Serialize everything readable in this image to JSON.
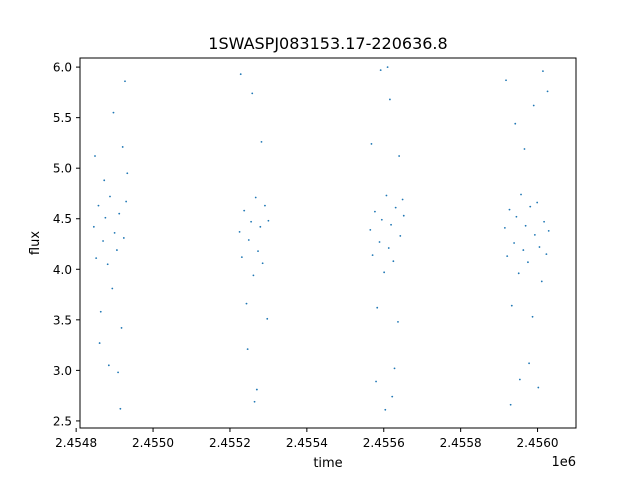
{
  "chart_data": {
    "type": "scatter",
    "title": "1SWASPJ083153.17-220636.8",
    "xlabel": "time",
    "ylabel": "flux",
    "x_offset_label": "1e6",
    "xlim": [
      2454810,
      2456100
    ],
    "ylim": [
      2.43,
      6.09
    ],
    "x_ticks": [
      2454800,
      2455000,
      2455200,
      2455400,
      2455600,
      2455800,
      2456000
    ],
    "x_tick_labels": [
      "2.4548",
      "2.4550",
      "2.4552",
      "2.4554",
      "2.4556",
      "2.4558",
      "2.4560"
    ],
    "y_ticks": [
      2.5,
      3.0,
      3.5,
      4.0,
      4.5,
      5.0,
      5.5,
      6.0
    ],
    "y_tick_labels": [
      "2.5",
      "3.0",
      "3.5",
      "4.0",
      "4.5",
      "5.0",
      "5.5",
      "6.0"
    ],
    "grid": false,
    "marker_color": "#1f77b4",
    "series": [
      {
        "name": "",
        "points": [
          [
            2454846,
            4.42
          ],
          [
            2454852,
            4.11
          ],
          [
            2454858,
            4.63
          ],
          [
            2454864,
            3.58
          ],
          [
            2454870,
            4.28
          ],
          [
            2454876,
            4.51
          ],
          [
            2454882,
            4.05
          ],
          [
            2454888,
            4.72
          ],
          [
            2454894,
            3.81
          ],
          [
            2454900,
            4.36
          ],
          [
            2454906,
            4.19
          ],
          [
            2454912,
            4.55
          ],
          [
            2454918,
            3.42
          ],
          [
            2454924,
            4.31
          ],
          [
            2454930,
            4.67
          ],
          [
            2454849,
            5.12
          ],
          [
            2454861,
            3.27
          ],
          [
            2454873,
            4.88
          ],
          [
            2454885,
            3.05
          ],
          [
            2454897,
            5.55
          ],
          [
            2454909,
            2.98
          ],
          [
            2454921,
            5.21
          ],
          [
            2454927,
            5.86
          ],
          [
            2454915,
            2.62
          ],
          [
            2454933,
            4.95
          ],
          [
            2455225,
            4.37
          ],
          [
            2455231,
            4.12
          ],
          [
            2455237,
            4.58
          ],
          [
            2455243,
            3.66
          ],
          [
            2455249,
            4.29
          ],
          [
            2455255,
            4.47
          ],
          [
            2455261,
            3.94
          ],
          [
            2455267,
            4.71
          ],
          [
            2455273,
            4.18
          ],
          [
            2455279,
            4.42
          ],
          [
            2455285,
            4.06
          ],
          [
            2455291,
            4.63
          ],
          [
            2455297,
            3.51
          ],
          [
            2455228,
            5.93
          ],
          [
            2455246,
            3.21
          ],
          [
            2455258,
            5.74
          ],
          [
            2455270,
            2.81
          ],
          [
            2455282,
            5.26
          ],
          [
            2455264,
            2.69
          ],
          [
            2455300,
            4.48
          ],
          [
            2455565,
            4.39
          ],
          [
            2455571,
            4.14
          ],
          [
            2455577,
            4.57
          ],
          [
            2455583,
            3.62
          ],
          [
            2455589,
            4.27
          ],
          [
            2455595,
            4.49
          ],
          [
            2455601,
            3.97
          ],
          [
            2455607,
            4.73
          ],
          [
            2455613,
            4.21
          ],
          [
            2455619,
            4.44
          ],
          [
            2455625,
            4.08
          ],
          [
            2455631,
            4.61
          ],
          [
            2455637,
            3.48
          ],
          [
            2455643,
            4.33
          ],
          [
            2455649,
            4.69
          ],
          [
            2455568,
            5.24
          ],
          [
            2455580,
            2.89
          ],
          [
            2455592,
            5.97
          ],
          [
            2455604,
            2.61
          ],
          [
            2455616,
            5.68
          ],
          [
            2455628,
            3.02
          ],
          [
            2455640,
            5.12
          ],
          [
            2455610,
            6.0
          ],
          [
            2455622,
            2.74
          ],
          [
            2455652,
            4.53
          ],
          [
            2455915,
            4.41
          ],
          [
            2455921,
            4.13
          ],
          [
            2455927,
            4.59
          ],
          [
            2455933,
            3.64
          ],
          [
            2455939,
            4.26
          ],
          [
            2455945,
            4.52
          ],
          [
            2455951,
            3.96
          ],
          [
            2455957,
            4.74
          ],
          [
            2455963,
            4.19
          ],
          [
            2455969,
            4.43
          ],
          [
            2455975,
            4.07
          ],
          [
            2455981,
            4.62
          ],
          [
            2455987,
            3.53
          ],
          [
            2455993,
            4.34
          ],
          [
            2455999,
            4.66
          ],
          [
            2456005,
            4.22
          ],
          [
            2456011,
            3.88
          ],
          [
            2456017,
            4.47
          ],
          [
            2456023,
            4.15
          ],
          [
            2456029,
            4.38
          ],
          [
            2455918,
            5.87
          ],
          [
            2455930,
            2.66
          ],
          [
            2455942,
            5.44
          ],
          [
            2455954,
            2.91
          ],
          [
            2455966,
            5.19
          ],
          [
            2455978,
            3.07
          ],
          [
            2455990,
            5.62
          ],
          [
            2456002,
            2.83
          ],
          [
            2456014,
            5.96
          ],
          [
            2456026,
            5.76
          ]
        ]
      }
    ]
  }
}
